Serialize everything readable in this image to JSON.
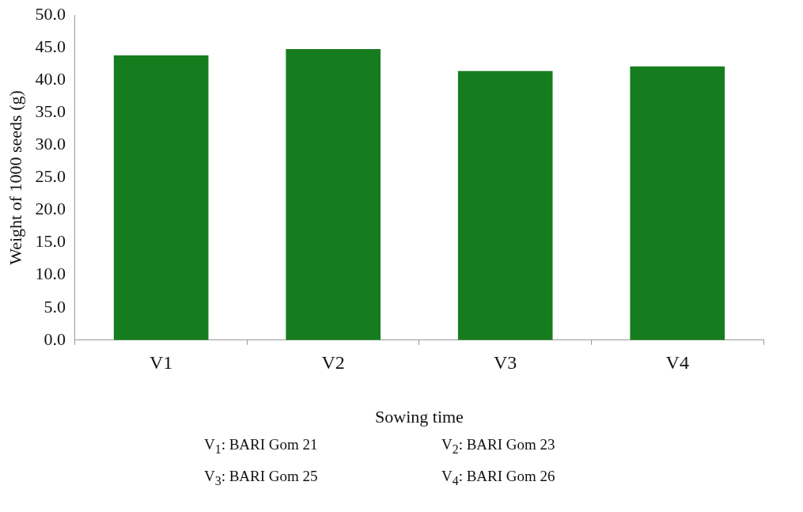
{
  "chart_data": {
    "type": "bar",
    "xlabel": "Sowing time",
    "ylabel": "Weight of 1000 seeds (g)",
    "categories": [
      "V1",
      "V2",
      "V3",
      "V4"
    ],
    "values": [
      43.8,
      44.8,
      41.4,
      42.1
    ],
    "color": "#167d1f",
    "ylim": [
      0,
      50
    ],
    "yticks": [
      {
        "value": 0,
        "label": "0.0"
      },
      {
        "value": 5,
        "label": "5.0"
      },
      {
        "value": 10,
        "label": "10.0"
      },
      {
        "value": 15,
        "label": "15.0"
      },
      {
        "value": 20,
        "label": "20.0"
      },
      {
        "value": 25,
        "label": "25.0"
      },
      {
        "value": 30,
        "label": "30.0"
      },
      {
        "value": 35,
        "label": "35.0"
      },
      {
        "value": 40,
        "label": "40.0"
      },
      {
        "value": 45,
        "label": "45.0"
      },
      {
        "value": 50,
        "label": "50.0"
      }
    ],
    "grid": false,
    "legend": false,
    "annotations": [
      "V$_{1}$: BARI Gom 21",
      "V$_{2}$: BARI Gom 23",
      "V$_{3}$: BARI Gom 25",
      "V$_{4}$: BARI Gom 26"
    ]
  }
}
